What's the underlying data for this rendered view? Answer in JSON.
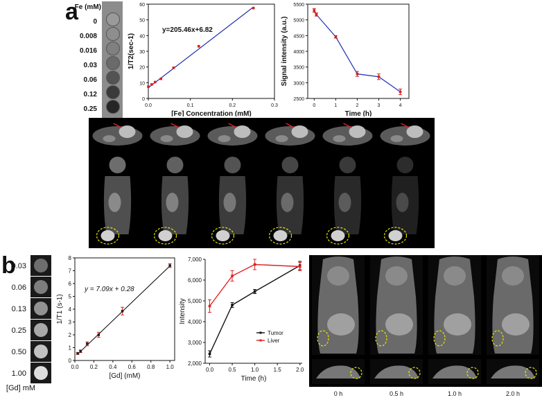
{
  "panel_a": {
    "letter": "a",
    "phantom": {
      "header": "Fe (mM)",
      "labels": [
        "0",
        "0.008",
        "0.016",
        "0.03",
        "0.06",
        "0.12",
        "0.25"
      ],
      "grays": [
        "#9a9a9a",
        "#8e8e8e",
        "#808080",
        "#6a6a6a",
        "#535353",
        "#3a3a3a",
        "#262626"
      ]
    }
  },
  "panel_b": {
    "letter": "b",
    "phantom": {
      "labels": [
        "0.03",
        "0.06",
        "0.13",
        "0.25",
        "0.50",
        "1.00"
      ],
      "footer": "[Gd] mM",
      "grays": [
        "#6e6e6e",
        "#7e7e7e",
        "#929292",
        "#a8a8a8",
        "#c2c2c2",
        "#dedede"
      ]
    },
    "time_labels": [
      "0 h",
      "0.5 h",
      "1.0 h",
      "2.0 h"
    ]
  },
  "chart_data": [
    {
      "id": "a-relaxivity",
      "type": "scatter",
      "xlabel": "[Fe] Concentration (mM)",
      "ylabel": "1/T2(sec-1)",
      "xlim": [
        0,
        0.3
      ],
      "ylim": [
        0,
        60
      ],
      "xticks": [
        "0.0",
        "0.1",
        "0.2",
        "0.3"
      ],
      "yticks": [
        "0",
        "10",
        "20",
        "30",
        "40",
        "50",
        "60"
      ],
      "annotation": "y=205.46x+6.82",
      "x": [
        0,
        0.008,
        0.016,
        0.03,
        0.06,
        0.12,
        0.25
      ],
      "y": [
        7.5,
        8.9,
        10.4,
        12.5,
        19.5,
        33.2,
        57.5
      ],
      "fit": {
        "slope": 205.46,
        "intercept": 6.82
      },
      "colors": {
        "points": "#d62020",
        "line": "#1f2fb0"
      }
    },
    {
      "id": "a-signal",
      "type": "line",
      "xlabel": "Time (h)",
      "ylabel": "Signal intensity (a.u.)",
      "xlim": [
        -0.3,
        4.4
      ],
      "ylim": [
        2500,
        5500
      ],
      "xticks": [
        "0",
        "1",
        "2",
        "3",
        "4"
      ],
      "yticks": [
        "2500",
        "3000",
        "3500",
        "4000",
        "4500",
        "5000",
        "5500"
      ],
      "x": [
        0,
        0.1,
        1,
        2,
        3,
        4
      ],
      "y": [
        5300,
        5170,
        4460,
        3280,
        3190,
        2710
      ],
      "err": [
        60,
        50,
        40,
        80,
        90,
        90
      ],
      "colors": {
        "points": "#d62020",
        "line": "#1f2fb0"
      }
    },
    {
      "id": "b-relaxivity",
      "type": "scatter",
      "xlabel": "[Gd]  (mM)",
      "ylabel": "1/T1 (s-1)",
      "xlim": [
        0,
        1.05
      ],
      "ylim": [
        0,
        8
      ],
      "xticks": [
        "0.0",
        "0.2",
        "0.4",
        "0.6",
        "0.8",
        "1.0"
      ],
      "yticks": [
        "0",
        "1",
        "2",
        "3",
        "4",
        "5",
        "6",
        "7",
        "8"
      ],
      "annotation": "y = 7.09x + 0.28",
      "x": [
        0.03,
        0.06,
        0.13,
        0.25,
        0.5,
        1.0
      ],
      "y": [
        0.55,
        0.72,
        1.3,
        2.0,
        3.85,
        7.4
      ],
      "err": [
        0.08,
        0.1,
        0.15,
        0.2,
        0.3,
        0.15
      ],
      "fit": {
        "slope": 7.09,
        "intercept": 0.28
      },
      "colors": {
        "points": "#d62020",
        "line": "#000000"
      }
    },
    {
      "id": "b-intensity",
      "type": "line",
      "xlabel": "Time (h)",
      "ylabel": "Intensity",
      "xlim": [
        -0.1,
        2.05
      ],
      "ylim": [
        2000,
        7000
      ],
      "xticks": [
        "0.0",
        "0.5",
        "1.0",
        "1.5",
        "2.0"
      ],
      "yticks": [
        "2,000",
        "3,000",
        "4,000",
        "5,000",
        "6,000",
        "7,000"
      ],
      "series": [
        {
          "name": "Tumor",
          "color": "#111111",
          "x": [
            0,
            0.5,
            1.0,
            2.0
          ],
          "y": [
            2450,
            4800,
            5450,
            6700
          ],
          "err": [
            150,
            120,
            100,
            200
          ]
        },
        {
          "name": "Liver",
          "color": "#e02020",
          "x": [
            0,
            0.5,
            1.0,
            2.0
          ],
          "y": [
            4750,
            6200,
            6750,
            6650
          ],
          "err": [
            300,
            250,
            250,
            200
          ]
        }
      ],
      "legend": "bottom-right"
    }
  ]
}
